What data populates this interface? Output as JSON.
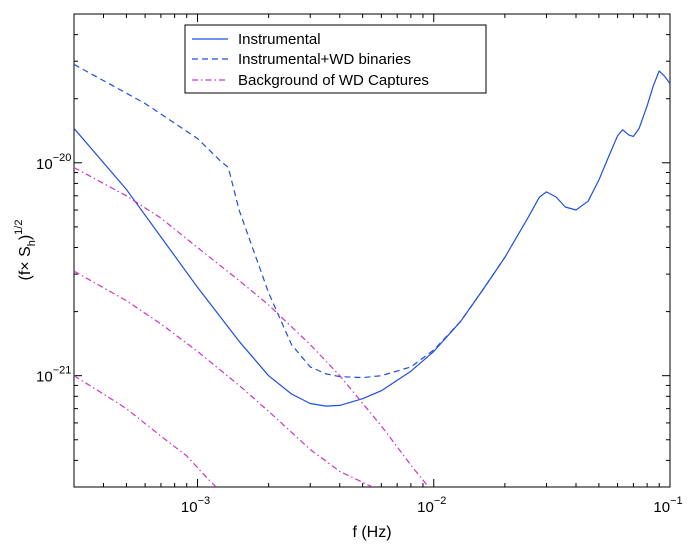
{
  "chart_data": {
    "type": "line",
    "scale": {
      "x": "log",
      "y": "log"
    },
    "xlim": [
      0.0003,
      0.1
    ],
    "ylim": [
      3e-22,
      5e-20
    ],
    "xlabel": "f (Hz)",
    "ylabel": {
      "base": "(f× S",
      "sub": "h",
      "close": ")",
      "sup": "1/2"
    },
    "xticks": [
      {
        "value": 0.001,
        "base": "10",
        "exp": "−3"
      },
      {
        "value": 0.01,
        "base": "10",
        "exp": "−2"
      },
      {
        "value": 0.1,
        "base": "10",
        "exp": "−1"
      }
    ],
    "yticks": [
      {
        "value": 1e-21,
        "base": "10",
        "exp": "−21"
      },
      {
        "value": 1e-20,
        "base": "10",
        "exp": "−20"
      }
    ],
    "legend": {
      "placement": "top-center"
    },
    "series": [
      {
        "name": "Instrumental",
        "style": "solid",
        "color": "#1f4fe0",
        "x": [
          0.0003,
          0.0005,
          0.001,
          0.0015,
          0.002,
          0.0025,
          0.003,
          0.0035,
          0.004,
          0.005,
          0.006,
          0.008,
          0.01,
          0.013,
          0.016,
          0.02,
          0.025,
          0.028,
          0.03,
          0.033,
          0.036,
          0.04,
          0.045,
          0.05,
          0.055,
          0.06,
          0.063,
          0.067,
          0.07,
          0.074,
          0.08,
          0.085,
          0.09,
          0.095,
          0.1
        ],
        "y": [
          1.45e-20,
          7.5e-21,
          2.6e-21,
          1.45e-21,
          1e-21,
          8.2e-22,
          7.4e-22,
          7.2e-22,
          7.25e-22,
          7.8e-22,
          8.5e-22,
          1.05e-21,
          1.3e-21,
          1.8e-21,
          2.5e-21,
          3.6e-21,
          5.5e-21,
          6.9e-21,
          7.3e-21,
          6.9e-21,
          6.2e-21,
          6e-21,
          6.6e-21,
          8.3e-21,
          1.07e-20,
          1.34e-20,
          1.43e-20,
          1.35e-20,
          1.33e-20,
          1.45e-20,
          1.85e-20,
          2.3e-20,
          2.7e-20,
          2.55e-20,
          2.35e-20
        ]
      },
      {
        "name": "Instrumental+WD binaries",
        "style": "dashed",
        "color": "#1f4fe0",
        "x": [
          0.0003,
          0.0006,
          0.001,
          0.00125,
          0.00135,
          0.0015,
          0.0018,
          0.002,
          0.0025,
          0.003,
          0.0035,
          0.004,
          0.005,
          0.006,
          0.008,
          0.01,
          0.013,
          0.016,
          0.02
        ],
        "y": [
          2.9e-20,
          1.9e-20,
          1.3e-20,
          1.02e-20,
          9.5e-21,
          6e-21,
          3.4e-21,
          2.45e-21,
          1.4e-21,
          1.1e-21,
          1.02e-21,
          9.9e-22,
          9.8e-22,
          1e-21,
          1.1e-21,
          1.32e-21,
          1.8e-21,
          2.5e-21,
          3.6e-21
        ]
      },
      {
        "name": "Background of WD Captures",
        "style": "dashdot",
        "color": "#cc33cc",
        "x": [
          0.0003,
          0.0005,
          0.0007,
          0.001,
          0.0015,
          0.002,
          0.003,
          0.004,
          0.006,
          0.008,
          0.0095
        ],
        "y": [
          9.5e-21,
          7e-21,
          5.5e-21,
          4e-21,
          2.8e-21,
          2.15e-21,
          1.4e-21,
          1e-21,
          5.8e-22,
          3.8e-22,
          3e-22
        ]
      },
      {
        "name": "",
        "style": "dashdot",
        "color": "#cc33cc",
        "x": [
          0.0003,
          0.0005,
          0.0007,
          0.001,
          0.0015,
          0.002,
          0.003,
          0.004,
          0.0055
        ],
        "y": [
          3.1e-21,
          2.25e-21,
          1.75e-21,
          1.3e-21,
          9e-22,
          6.8e-22,
          4.5e-22,
          3.55e-22,
          3e-22
        ]
      },
      {
        "name": "",
        "style": "dashdot",
        "color": "#cc33cc",
        "x": [
          0.0003,
          0.0004,
          0.0005,
          0.0007,
          0.0009,
          0.0011,
          0.0012
        ],
        "y": [
          1e-21,
          8.2e-22,
          7e-22,
          5.2e-22,
          4.2e-22,
          3.3e-22,
          3e-22
        ]
      }
    ]
  }
}
